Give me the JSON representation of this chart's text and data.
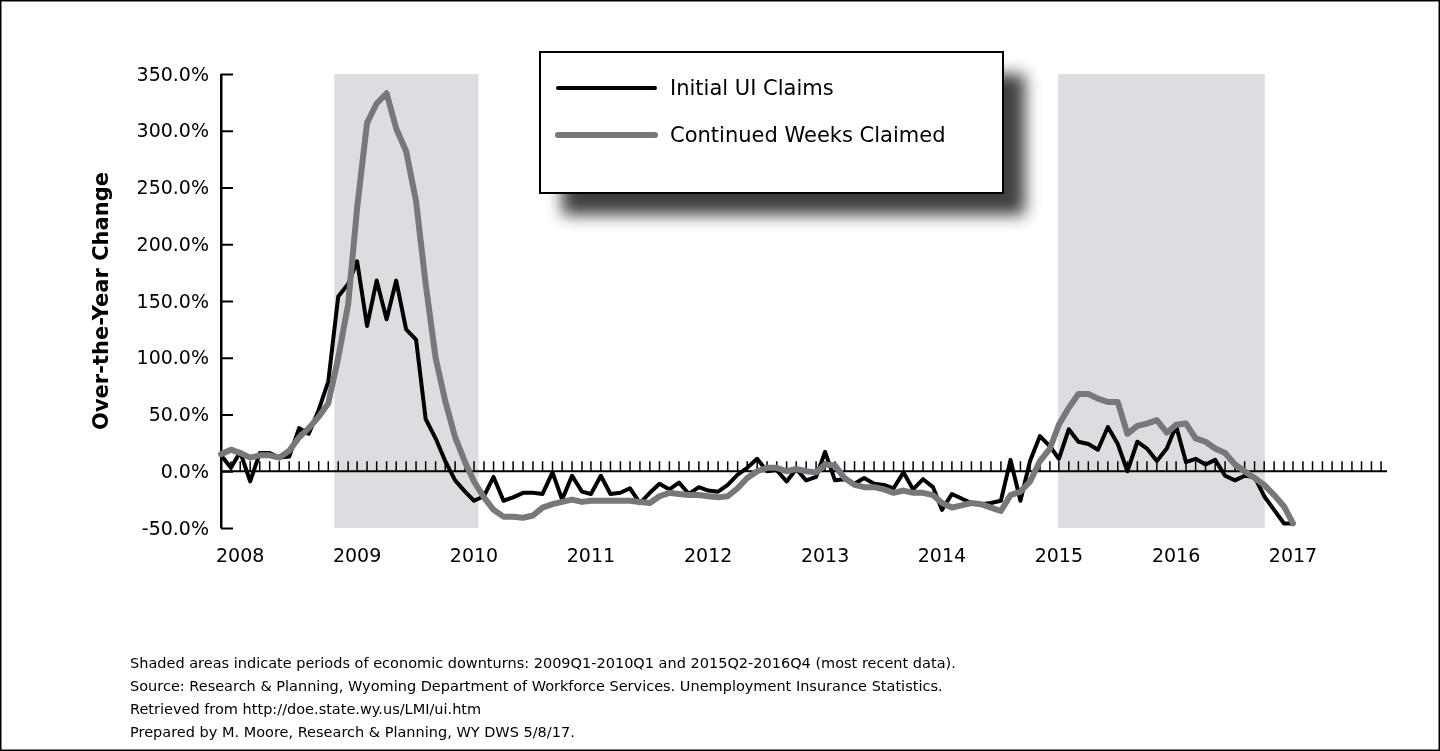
{
  "chart_data": {
    "type": "line",
    "ylabel": "Over-the-Year Change",
    "x": [
      "2008-01",
      "2008-02",
      "2008-03",
      "2008-04",
      "2008-05",
      "2008-06",
      "2008-07",
      "2008-08",
      "2008-09",
      "2008-10",
      "2008-11",
      "2008-12",
      "2009-01",
      "2009-02",
      "2009-03",
      "2009-04",
      "2009-05",
      "2009-06",
      "2009-07",
      "2009-08",
      "2009-09",
      "2009-10",
      "2009-11",
      "2009-12",
      "2010-01",
      "2010-02",
      "2010-03",
      "2010-04",
      "2010-05",
      "2010-06",
      "2010-07",
      "2010-08",
      "2010-09",
      "2010-10",
      "2010-11",
      "2010-12",
      "2011-01",
      "2011-02",
      "2011-03",
      "2011-04",
      "2011-05",
      "2011-06",
      "2011-07",
      "2011-08",
      "2011-09",
      "2011-10",
      "2011-11",
      "2011-12",
      "2012-01",
      "2012-02",
      "2012-03",
      "2012-04",
      "2012-05",
      "2012-06",
      "2012-07",
      "2012-08",
      "2012-09",
      "2012-10",
      "2012-11",
      "2012-12",
      "2013-01",
      "2013-02",
      "2013-03",
      "2013-04",
      "2013-05",
      "2013-06",
      "2013-07",
      "2013-08",
      "2013-09",
      "2013-10",
      "2013-11",
      "2013-12",
      "2014-01",
      "2014-02",
      "2014-03",
      "2014-04",
      "2014-05",
      "2014-06",
      "2014-07",
      "2014-08",
      "2014-09",
      "2014-10",
      "2014-11",
      "2014-12",
      "2015-01",
      "2015-02",
      "2015-03",
      "2015-04",
      "2015-05",
      "2015-06",
      "2015-07",
      "2015-08",
      "2015-09",
      "2015-10",
      "2015-11",
      "2015-12",
      "2016-01",
      "2016-02",
      "2016-03",
      "2016-04",
      "2016-05",
      "2016-06",
      "2016-07",
      "2016-08",
      "2016-09",
      "2016-10",
      "2016-11",
      "2016-12",
      "2017-01",
      "2017-02",
      "2017-03"
    ],
    "series": [
      {
        "name": "Initial UI Claims",
        "color": "#000000",
        "values": [
          14,
          3,
          17,
          -9,
          16,
          16,
          12,
          13,
          38,
          33,
          54,
          79,
          154,
          165,
          185,
          128,
          168,
          134,
          168,
          125,
          116,
          46,
          29,
          9,
          -8,
          -18,
          -26,
          -22,
          -5,
          -26,
          -23,
          -19,
          -19,
          -20,
          -1,
          -25,
          -4,
          -18,
          -20,
          -4,
          -20,
          -19,
          -15,
          -28,
          -19,
          -11,
          -16,
          -10,
          -20,
          -14,
          -17,
          -18,
          -12,
          -3,
          3,
          11,
          0,
          1,
          -9,
          2,
          -8,
          -5,
          17,
          -8,
          -7,
          -11,
          -6,
          -11,
          -12,
          -15,
          -1,
          -16,
          -7,
          -14,
          -34,
          -20,
          -24,
          -28,
          -29,
          -28,
          -26,
          10,
          -26,
          9,
          31,
          22,
          11,
          37,
          26,
          24,
          19,
          39,
          24,
          0,
          26,
          20,
          9,
          20,
          40,
          8,
          11,
          6,
          10,
          -4,
          -8,
          -4,
          -5,
          -22,
          -34,
          -46,
          -46
        ]
      },
      {
        "name": "Continued Weeks Claimed",
        "color": "#77787b",
        "values": [
          15,
          19,
          16,
          12,
          14,
          14,
          12,
          18,
          30,
          38,
          48,
          60,
          100,
          147,
          232,
          307,
          324,
          333,
          302,
          282,
          238,
          165,
          100,
          62,
          30,
          8,
          -9,
          -23,
          -34,
          -40,
          -40,
          -41,
          -39,
          -32,
          -29,
          -27,
          -25,
          -27,
          -26,
          -26,
          -26,
          -26,
          -26,
          -27,
          -28,
          -22,
          -19,
          -20,
          -21,
          -21,
          -22,
          -23,
          -22,
          -15,
          -6,
          0,
          3,
          3,
          0,
          2,
          0,
          -1,
          6,
          5,
          -6,
          -12,
          -14,
          -14,
          -16,
          -19,
          -17,
          -19,
          -19,
          -21,
          -28,
          -32,
          -30,
          -28,
          -29,
          -32,
          -35,
          -21,
          -18,
          -9,
          9,
          20,
          41,
          56,
          68,
          68,
          64,
          61,
          61,
          33,
          40,
          42,
          45,
          34,
          41,
          42,
          29,
          26,
          20,
          16,
          6,
          0,
          -6,
          -12,
          -21,
          -31,
          -46
        ]
      }
    ],
    "xlim": [
      "2008-01",
      "2018-01"
    ],
    "xticks": [
      {
        "value": "2008-01",
        "label": null
      },
      {
        "value": "2008-02",
        "label": null
      },
      {
        "value": "2008-03",
        "label": "2008"
      },
      {
        "value": "2008-04",
        "label": null
      },
      {
        "value": "2008-05",
        "label": null
      },
      {
        "value": "2008-06",
        "label": null
      },
      {
        "value": "2008-07",
        "label": null
      },
      {
        "value": "2008-08",
        "label": null
      },
      {
        "value": "2008-09",
        "label": null
      },
      {
        "value": "2008-10",
        "label": null
      },
      {
        "value": "2008-11",
        "label": null
      },
      {
        "value": "2008-12",
        "label": null
      },
      {
        "value": "2009-01",
        "label": null
      },
      {
        "value": "2009-02",
        "label": null
      },
      {
        "value": "2009-03",
        "label": "2009"
      },
      {
        "value": "2009-04",
        "label": null
      },
      {
        "value": "2009-05",
        "label": null
      },
      {
        "value": "2009-06",
        "label": null
      },
      {
        "value": "2009-07",
        "label": null
      },
      {
        "value": "2009-08",
        "label": null
      },
      {
        "value": "2009-09",
        "label": null
      },
      {
        "value": "2009-10",
        "label": null
      },
      {
        "value": "2009-11",
        "label": null
      },
      {
        "value": "2009-12",
        "label": null
      },
      {
        "value": "2010-01",
        "label": null
      },
      {
        "value": "2010-02",
        "label": null
      },
      {
        "value": "2010-03",
        "label": "2010"
      },
      {
        "value": "2010-04",
        "label": null
      },
      {
        "value": "2010-05",
        "label": null
      },
      {
        "value": "2010-06",
        "label": null
      },
      {
        "value": "2010-07",
        "label": null
      },
      {
        "value": "2010-08",
        "label": null
      },
      {
        "value": "2010-09",
        "label": null
      },
      {
        "value": "2010-10",
        "label": null
      },
      {
        "value": "2010-11",
        "label": null
      },
      {
        "value": "2010-12",
        "label": null
      },
      {
        "value": "2011-01",
        "label": null
      },
      {
        "value": "2011-02",
        "label": null
      },
      {
        "value": "2011-03",
        "label": "2011"
      },
      {
        "value": "2011-04",
        "label": null
      },
      {
        "value": "2011-05",
        "label": null
      },
      {
        "value": "2011-06",
        "label": null
      },
      {
        "value": "2011-07",
        "label": null
      },
      {
        "value": "2011-08",
        "label": null
      },
      {
        "value": "2011-09",
        "label": null
      },
      {
        "value": "2011-10",
        "label": null
      },
      {
        "value": "2011-11",
        "label": null
      },
      {
        "value": "2011-12",
        "label": null
      },
      {
        "value": "2012-01",
        "label": null
      },
      {
        "value": "2012-02",
        "label": null
      },
      {
        "value": "2012-03",
        "label": "2012"
      },
      {
        "value": "2012-04",
        "label": null
      },
      {
        "value": "2012-05",
        "label": null
      },
      {
        "value": "2012-06",
        "label": null
      },
      {
        "value": "2012-07",
        "label": null
      },
      {
        "value": "2012-08",
        "label": null
      },
      {
        "value": "2012-09",
        "label": null
      },
      {
        "value": "2012-10",
        "label": null
      },
      {
        "value": "2012-11",
        "label": null
      },
      {
        "value": "2012-12",
        "label": null
      },
      {
        "value": "2013-01",
        "label": null
      },
      {
        "value": "2013-02",
        "label": null
      },
      {
        "value": "2013-03",
        "label": "2013"
      },
      {
        "value": "2013-04",
        "label": null
      },
      {
        "value": "2013-05",
        "label": null
      },
      {
        "value": "2013-06",
        "label": null
      },
      {
        "value": "2013-07",
        "label": null
      },
      {
        "value": "2013-08",
        "label": null
      },
      {
        "value": "2013-09",
        "label": null
      },
      {
        "value": "2013-10",
        "label": null
      },
      {
        "value": "2013-11",
        "label": null
      },
      {
        "value": "2013-12",
        "label": null
      },
      {
        "value": "2014-01",
        "label": null
      },
      {
        "value": "2014-02",
        "label": null
      },
      {
        "value": "2014-03",
        "label": "2014"
      },
      {
        "value": "2014-04",
        "label": null
      },
      {
        "value": "2014-05",
        "label": null
      },
      {
        "value": "2014-06",
        "label": null
      },
      {
        "value": "2014-07",
        "label": null
      },
      {
        "value": "2014-08",
        "label": null
      },
      {
        "value": "2014-09",
        "label": null
      },
      {
        "value": "2014-10",
        "label": null
      },
      {
        "value": "2014-11",
        "label": null
      },
      {
        "value": "2014-12",
        "label": null
      },
      {
        "value": "2015-01",
        "label": null
      },
      {
        "value": "2015-02",
        "label": null
      },
      {
        "value": "2015-03",
        "label": "2015"
      },
      {
        "value": "2015-04",
        "label": null
      },
      {
        "value": "2015-05",
        "label": null
      },
      {
        "value": "2015-06",
        "label": null
      },
      {
        "value": "2015-07",
        "label": null
      },
      {
        "value": "2015-08",
        "label": null
      },
      {
        "value": "2015-09",
        "label": null
      },
      {
        "value": "2015-10",
        "label": null
      },
      {
        "value": "2015-11",
        "label": null
      },
      {
        "value": "2015-12",
        "label": null
      },
      {
        "value": "2016-01",
        "label": null
      },
      {
        "value": "2016-02",
        "label": null
      },
      {
        "value": "2016-03",
        "label": "2016"
      },
      {
        "value": "2016-04",
        "label": null
      },
      {
        "value": "2016-05",
        "label": null
      },
      {
        "value": "2016-06",
        "label": null
      },
      {
        "value": "2016-07",
        "label": null
      },
      {
        "value": "2016-08",
        "label": null
      },
      {
        "value": "2016-09",
        "label": null
      },
      {
        "value": "2016-10",
        "label": null
      },
      {
        "value": "2016-11",
        "label": null
      },
      {
        "value": "2016-12",
        "label": null
      },
      {
        "value": "2017-01",
        "label": null
      },
      {
        "value": "2017-02",
        "label": null
      },
      {
        "value": "2017-03",
        "label": "2017"
      },
      {
        "value": "2017-04",
        "label": null
      },
      {
        "value": "2017-05",
        "label": null
      },
      {
        "value": "2017-06",
        "label": null
      },
      {
        "value": "2017-07",
        "label": null
      },
      {
        "value": "2017-08",
        "label": null
      },
      {
        "value": "2017-09",
        "label": null
      },
      {
        "value": "2017-10",
        "label": null
      },
      {
        "value": "2017-11",
        "label": null
      },
      {
        "value": "2017-12",
        "label": null
      }
    ],
    "ylim": [
      -50,
      350
    ],
    "yticks": [
      {
        "value": -50,
        "label": "-50.0%"
      },
      {
        "value": 0,
        "label": "0.0%"
      },
      {
        "value": 50,
        "label": "50.0%"
      },
      {
        "value": 100,
        "label": "100.0%"
      },
      {
        "value": 150,
        "label": "150.0%"
      },
      {
        "value": 200,
        "label": "200.0%"
      },
      {
        "value": 250,
        "label": "250.0%"
      },
      {
        "value": 300,
        "label": "300.0%"
      },
      {
        "value": 350,
        "label": "350.0%"
      }
    ],
    "bands": [
      {
        "axis": "x",
        "from": "2008-12-20",
        "to": "2010-03-15",
        "color": "#dcdde0"
      },
      {
        "axis": "x",
        "from": "2015-02-27",
        "to": "2016-12-03",
        "color": "#dcdde0"
      }
    ],
    "ref_lines": [
      {
        "axis": "y",
        "value": 0,
        "color": "#000000"
      }
    ],
    "grid": false,
    "legend": "top",
    "marker": "none",
    "line_style": "solid",
    "annotations": [
      "Shaded areas indicate periods of economic downturns: 2009Q1-2010Q1 and 2015Q2-2016Q4 (most recent data).",
      "Source: Research & Planning, Wyoming Department of Workforce Services. Unemployment Insurance Statistics.",
      "Retrieved from http://doe.state.wy.us/LMI/ui.htm",
      "Prepared by M. Moore, Research & Planning, WY DWS 5/8/17."
    ]
  }
}
